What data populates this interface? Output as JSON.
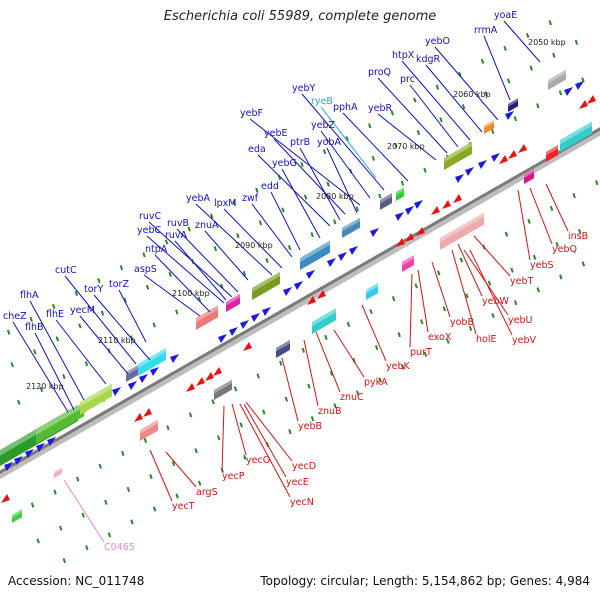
{
  "title": "Escherichia coli 55989, complete genome",
  "footer": {
    "accession": "Accession: NC_011748",
    "summary": "Topology: circular; Length: 5,154,862 bp; Genes: 4,984"
  },
  "colors": {
    "forward_label": "#1010cc",
    "reverse_label": "#dd1010",
    "rna_label": "#22aadd",
    "pseudo_label": "#ee88cc",
    "backbone": "#7a7a7a",
    "tick": "#2a8a2a"
  },
  "kbp_markers": [
    "2050 kbp",
    "2060 kbp",
    "2070 kbp",
    "2080 kbp",
    "2090 kbp",
    "2100 kbp",
    "2110 kbp",
    "2120 kbp"
  ],
  "genes_forward": [
    "yoaE",
    "rrmA",
    "yebO",
    "htpX",
    "kdgR",
    "proQ",
    "prc",
    "yebR",
    "pphA",
    "yebY",
    "ryeB",
    "yebZ",
    "yebF",
    "yebE",
    "ptrB",
    "yobA",
    "eda",
    "yebG",
    "edd",
    "zwf",
    "yebA",
    "lpxM",
    "ruvC",
    "yebC",
    "ruvB",
    "ruvA",
    "znuA",
    "ntpA",
    "aspS",
    "torY",
    "cutC",
    "torZ",
    "yecM",
    "flhA",
    "flhE",
    "cheZ",
    "flhB"
  ],
  "genes_reverse": [
    "insB",
    "yebQ",
    "yebS",
    "yebT",
    "yebW",
    "yebU",
    "holE",
    "yebV",
    "exoX",
    "yobB",
    "purT",
    "yebK",
    "pykA",
    "znuC",
    "znuB",
    "yebB",
    "yecD",
    "yecO",
    "yecE",
    "yecP",
    "yecN",
    "argS",
    "yecT",
    "C0465"
  ]
}
